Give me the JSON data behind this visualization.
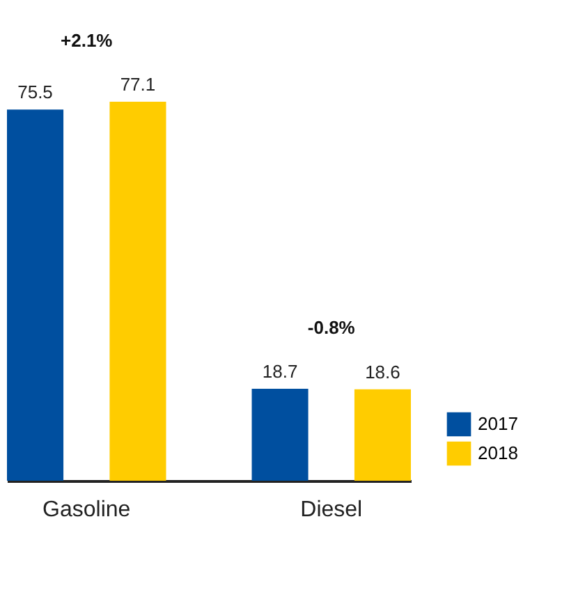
{
  "chart_data": {
    "type": "bar",
    "categories": [
      "Gasoline",
      "Diesel"
    ],
    "series": [
      {
        "name": "2017",
        "color": "#004f9f",
        "values": [
          75.5,
          18.7
        ]
      },
      {
        "name": "2018",
        "color": "#ffcc00",
        "values": [
          77.1,
          18.6
        ]
      }
    ],
    "data_labels": true,
    "legend": "bottom right",
    "grid": false,
    "annotations": [
      "+2.1%",
      "-0.8%"
    ]
  }
}
